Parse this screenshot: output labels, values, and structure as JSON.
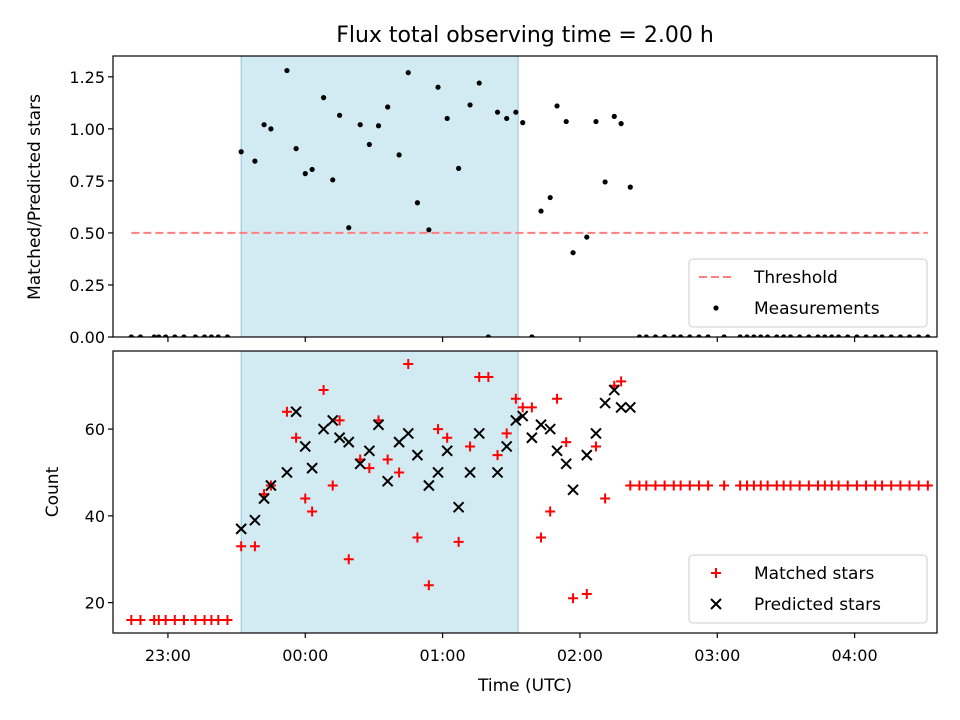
{
  "title": "Flux total observing time = 2.00 h",
  "colors": {
    "threshold": "#ff7f7f",
    "measurement": "#000000",
    "matched": "#ff0000",
    "predicted": "#000000",
    "observing_window": "#add8e6"
  },
  "chart_data": [
    {
      "type": "scatter",
      "xlabel": "",
      "ylabel": "Matched/Predicted stars",
      "ylim": [
        0,
        1.35
      ],
      "yticks": [
        0,
        0.25,
        0.5,
        0.75,
        1.0,
        1.25
      ],
      "ytick_labels": [
        "0.00",
        "0.25",
        "0.50",
        "0.75",
        "1.00",
        "1.25"
      ],
      "xlim": [
        "22:36",
        "04:36"
      ],
      "xticks": [
        "23:00",
        "00:00",
        "01:00",
        "02:00",
        "03:00",
        "04:00"
      ],
      "shaded_window": [
        "23:32",
        "01:33"
      ],
      "legend": {
        "placement": "lower right",
        "entries": [
          "Threshold",
          "Measurements"
        ]
      },
      "series": [
        {
          "name": "Threshold",
          "kind": "dashed-line",
          "x": [
            "22:44",
            "04:32"
          ],
          "y": [
            0.5,
            0.5
          ]
        },
        {
          "name": "Measurements",
          "kind": "dots",
          "x": [
            "22:44",
            "22:48",
            "22:54",
            "22:56",
            "22:59",
            "23:03",
            "23:07",
            "23:12",
            "23:16",
            "23:19",
            "23:22",
            "23:26",
            "23:32",
            "23:38",
            "23:42",
            "23:45",
            "23:52",
            "23:56",
            "24:00",
            "24:03",
            "24:08",
            "24:12",
            "24:15",
            "24:19",
            "24:24",
            "24:28",
            "24:32",
            "24:36",
            "24:41",
            "24:45",
            "24:49",
            "24:54",
            "24:58",
            "25:02",
            "25:07",
            "25:12",
            "25:16",
            "25:20",
            "25:24",
            "25:28",
            "25:32",
            "25:35",
            "25:39",
            "25:43",
            "25:47",
            "25:50",
            "25:54",
            "25:57",
            "26:03",
            "26:07",
            "26:11",
            "26:15",
            "26:18",
            "26:22",
            "26:26",
            "26:29",
            "26:33",
            "26:37",
            "26:41",
            "26:44",
            "26:48",
            "26:52",
            "26:56",
            "27:03",
            "27:10",
            "27:13",
            "27:16",
            "27:19",
            "27:22",
            "27:26",
            "27:29",
            "27:32",
            "27:36",
            "27:40",
            "27:44",
            "27:47",
            "27:50",
            "27:53",
            "27:57",
            "28:01",
            "28:05",
            "28:09",
            "28:12",
            "28:16",
            "28:20",
            "28:24",
            "28:28",
            "28:32"
          ],
          "y": [
            0,
            0,
            0,
            0,
            0,
            0,
            0,
            0,
            0,
            0,
            0,
            0,
            0.89,
            0.845,
            1.02,
            1.0,
            1.28,
            0.905,
            0.785,
            0.805,
            1.15,
            0.755,
            1.065,
            0.525,
            1.02,
            0.925,
            1.015,
            1.105,
            0.875,
            1.27,
            0.645,
            0.515,
            1.2,
            1.05,
            0.81,
            1.115,
            1.22,
            0,
            1.08,
            1.05,
            1.08,
            1.03,
            0,
            0.605,
            0.67,
            1.11,
            1.035,
            0.405,
            0.48,
            1.035,
            0.745,
            1.06,
            1.025,
            0.72,
            0,
            0,
            0,
            0,
            0,
            0,
            0,
            0,
            0,
            0,
            0,
            0,
            0,
            0,
            0,
            0,
            0,
            0,
            0,
            0,
            0,
            0,
            0,
            0,
            0,
            0,
            0,
            0,
            0,
            0,
            0,
            0,
            0,
            0
          ]
        }
      ]
    },
    {
      "type": "scatter",
      "xlabel": "Time (UTC)",
      "ylabel": "Count",
      "ylim": [
        13,
        78
      ],
      "yticks": [
        20,
        40,
        60
      ],
      "ytick_labels": [
        "20",
        "40",
        "60"
      ],
      "xlim": [
        "22:36",
        "04:36"
      ],
      "xticks": [
        "23:00",
        "00:00",
        "01:00",
        "02:00",
        "03:00",
        "04:00"
      ],
      "xtick_labels": [
        "23:00",
        "00:00",
        "01:00",
        "02:00",
        "03:00",
        "04:00"
      ],
      "shaded_window": [
        "23:32",
        "01:33"
      ],
      "legend": {
        "placement": "lower right",
        "entries": [
          "Matched stars",
          "Predicted stars"
        ]
      },
      "series": [
        {
          "name": "Matched stars",
          "marker": "plus",
          "x": [
            "22:44",
            "22:48",
            "22:54",
            "22:56",
            "22:59",
            "23:03",
            "23:07",
            "23:12",
            "23:16",
            "23:19",
            "23:22",
            "23:26",
            "23:32",
            "23:38",
            "23:42",
            "23:45",
            "23:52",
            "23:56",
            "24:00",
            "24:03",
            "24:08",
            "24:12",
            "24:15",
            "24:19",
            "24:24",
            "24:28",
            "24:32",
            "24:36",
            "24:41",
            "24:45",
            "24:49",
            "24:54",
            "24:58",
            "25:02",
            "25:07",
            "25:12",
            "25:16",
            "25:20",
            "25:24",
            "25:28",
            "25:32",
            "25:35",
            "25:39",
            "25:43",
            "25:47",
            "25:50",
            "25:54",
            "25:57",
            "26:03",
            "26:07",
            "26:11",
            "26:15",
            "26:18",
            "26:22",
            "26:26",
            "26:29",
            "26:33",
            "26:37",
            "26:41",
            "26:44",
            "26:48",
            "26:52",
            "26:56",
            "27:03",
            "27:10",
            "27:13",
            "27:16",
            "27:19",
            "27:22",
            "27:26",
            "27:29",
            "27:32",
            "27:36",
            "27:40",
            "27:44",
            "27:47",
            "27:50",
            "27:53",
            "27:57",
            "28:01",
            "28:05",
            "28:09",
            "28:12",
            "28:16",
            "28:20",
            "28:24",
            "28:28",
            "28:32"
          ],
          "y": [
            16,
            16,
            16,
            16,
            16,
            16,
            16,
            16,
            16,
            16,
            16,
            16,
            33,
            33,
            45,
            47,
            64,
            58,
            44,
            41,
            69,
            47,
            62,
            30,
            53,
            51,
            62,
            53,
            50,
            75,
            35,
            24,
            60,
            58,
            34,
            56,
            72,
            72,
            54,
            59,
            67,
            65,
            65,
            35,
            41,
            67,
            57,
            21,
            22,
            56,
            44,
            70,
            71,
            47,
            47,
            47,
            47,
            47,
            47,
            47,
            47,
            47,
            47,
            47,
            47,
            47,
            47,
            47,
            47,
            47,
            47,
            47,
            47,
            47,
            47,
            47,
            47,
            47,
            47,
            47,
            47,
            47,
            47,
            47,
            47,
            47,
            47,
            47
          ]
        },
        {
          "name": "Predicted stars",
          "marker": "x",
          "x": [
            "23:32",
            "23:38",
            "23:42",
            "23:45",
            "23:52",
            "23:56",
            "24:00",
            "24:03",
            "24:08",
            "24:12",
            "24:15",
            "24:19",
            "24:24",
            "24:28",
            "24:32",
            "24:36",
            "24:41",
            "24:45",
            "24:49",
            "24:54",
            "24:58",
            "25:02",
            "25:07",
            "25:12",
            "25:16",
            "25:24",
            "25:28",
            "25:32",
            "25:35",
            "25:39",
            "25:43",
            "25:47",
            "25:50",
            "25:54",
            "25:57",
            "26:03",
            "26:07",
            "26:11",
            "26:15",
            "26:18",
            "26:22"
          ],
          "y": [
            37,
            39,
            44,
            47,
            50,
            64,
            56,
            51,
            60,
            62,
            58,
            57,
            52,
            55,
            61,
            48,
            57,
            59,
            54,
            47,
            50,
            55,
            42,
            50,
            59,
            50,
            56,
            62,
            63,
            58,
            61,
            60,
            55,
            52,
            46,
            54,
            59,
            66,
            69,
            65,
            65
          ]
        }
      ]
    }
  ]
}
